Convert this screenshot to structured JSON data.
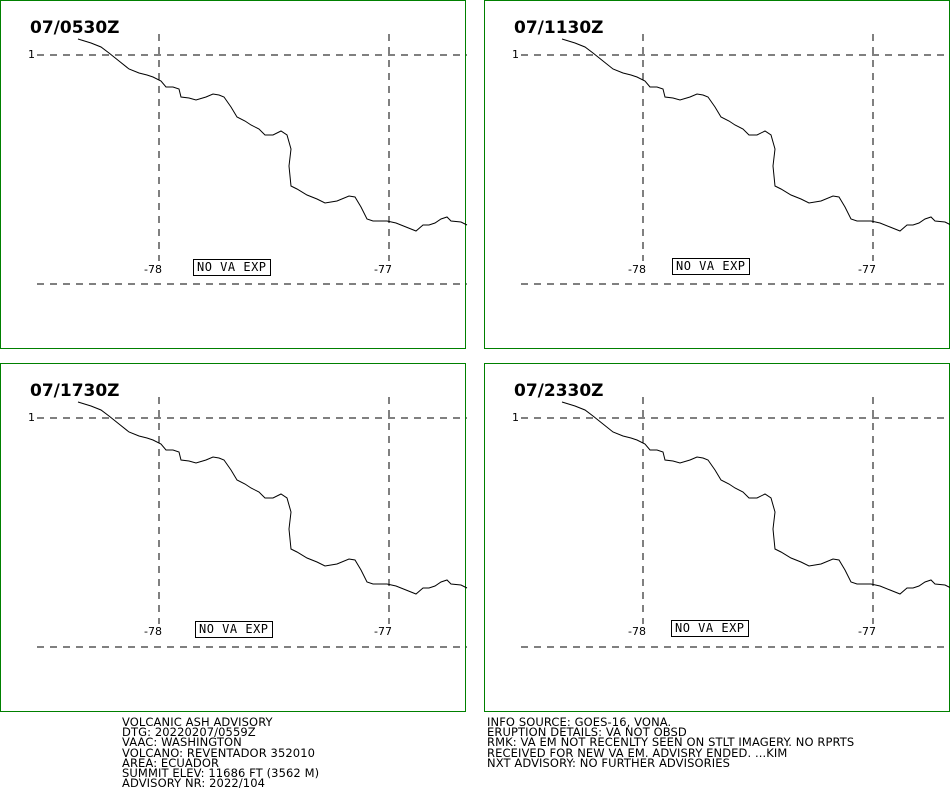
{
  "panels": [
    {
      "time": "07/0530Z",
      "lat_label": "1",
      "lon_labels": [
        "-78",
        "-77"
      ],
      "status": "NO VA EXP"
    },
    {
      "time": "07/1130Z",
      "lat_label": "1",
      "lon_labels": [
        "-78",
        "-77"
      ],
      "status": "NO VA EXP"
    },
    {
      "time": "07/1730Z",
      "lat_label": "1",
      "lon_labels": [
        "-78",
        "-77"
      ],
      "status": "NO VA EXP"
    },
    {
      "time": "07/2330Z",
      "lat_label": "1",
      "lon_labels": [
        "-78",
        "-77"
      ],
      "status": "NO VA EXP"
    }
  ],
  "advisory_left": [
    "VOLCANIC ASH ADVISORY",
    "DTG: 20220207/0559Z",
    "VAAC: WASHINGTON",
    "VOLCANO: REVENTADOR 352010",
    "AREA: ECUADOR",
    "SUMMIT ELEV: 11686 FT (3562 M)",
    "ADVISORY NR: 2022/104"
  ],
  "advisory_right": [
    "INFO SOURCE: GOES-16, VONA.",
    "ERUPTION DETAILS: VA NOT OBSD",
    "RMK: VA EM NOT RECENLTY SEEN ON STLT IMAGERY. NO RPRTS",
    "RECEIVED FOR NEW VA EM. ADVISRY ENDED. ...KIM",
    "NXT ADVISORY: NO FURTHER ADVISORIES"
  ],
  "colors": {
    "panel_border": "#008000",
    "lines": "#000000",
    "background": "#ffffff"
  }
}
